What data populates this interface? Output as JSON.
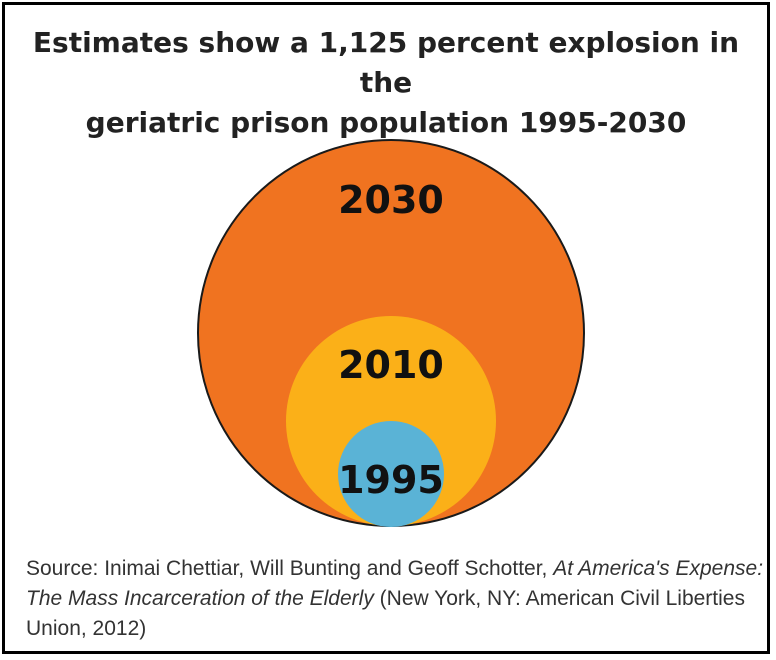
{
  "chart_data": {
    "type": "bubble",
    "title_line1": "Estimates show a 1,125 percent explosion in the",
    "title_line2": "geriatric prison population 1995-2030",
    "circles": [
      {
        "label": "2030",
        "color": "#f07320"
      },
      {
        "label": "2010",
        "color": "#fbb018"
      },
      {
        "label": "1995",
        "color": "#5ab3d6"
      }
    ]
  },
  "source": {
    "prefix": "Source: Inimai Chettiar, Will Bunting and Geoff Schotter, ",
    "italic": "At America's Expense: The Mass Incarceration of the Elderly",
    "suffix": " (New York, NY: American Civil Liberties Union, 2012)"
  }
}
